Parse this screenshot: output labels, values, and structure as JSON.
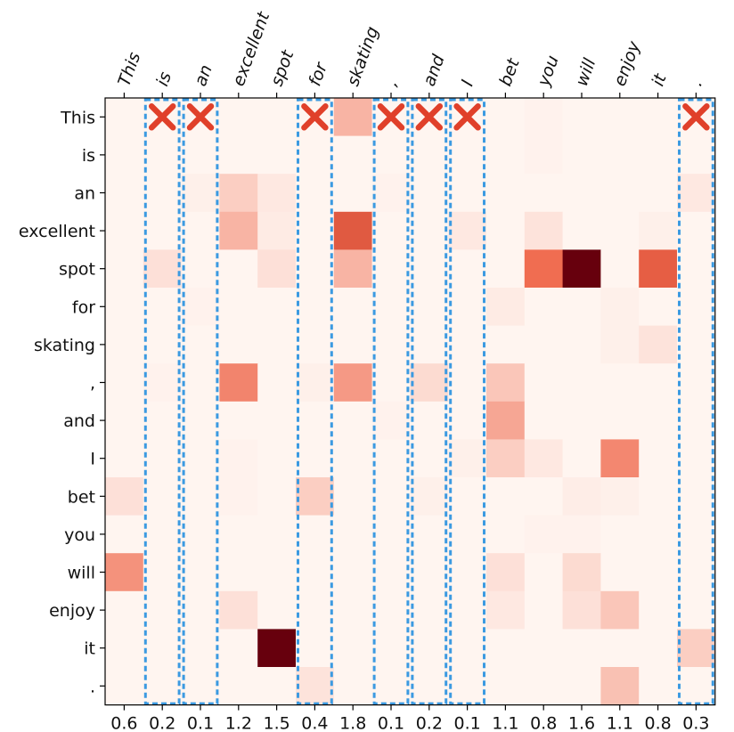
{
  "chart_data": {
    "type": "heatmap",
    "title": "",
    "xlabel": "",
    "ylabel": "",
    "x_tokens": [
      "This",
      "is",
      "an",
      "excellent",
      "spot",
      "for",
      "skating",
      ",",
      "and",
      "I",
      "bet",
      "you",
      "will",
      "enjoy",
      "it",
      "."
    ],
    "y_tokens": [
      "This",
      "is",
      "an",
      "excellent",
      "spot",
      "for",
      "skating",
      ",",
      "and",
      "I",
      "bet",
      "you",
      "will",
      "enjoy",
      "it",
      "."
    ],
    "column_scores": [
      "0.6",
      "0.2",
      "0.1",
      "1.2",
      "1.5",
      "0.4",
      "1.8",
      "0.1",
      "0.2",
      "0.1",
      "1.1",
      "0.8",
      "1.6",
      "1.1",
      "0.8",
      "0.3"
    ],
    "value_range": [
      0,
      1
    ],
    "colormap": "Reds",
    "colors": {
      "low": "#fff5f0",
      "mid": "#ef6548",
      "high": "#67000d",
      "highlight_box": "#3b9ae1",
      "cross_mark": "#e0402a"
    },
    "highlighted_columns": [
      1,
      2,
      5,
      7,
      8,
      9,
      15
    ],
    "crossed_cells": [
      [
        0,
        1
      ],
      [
        0,
        2
      ],
      [
        0,
        5
      ],
      [
        0,
        7
      ],
      [
        0,
        8
      ],
      [
        0,
        9
      ],
      [
        0,
        15
      ]
    ],
    "values": [
      [
        0.0,
        0.0,
        0.0,
        0.0,
        0.0,
        0.0,
        0.25,
        0.0,
        0.0,
        0.0,
        0.0,
        0.01,
        0.0,
        0.0,
        0.0,
        0.0
      ],
      [
        0.0,
        0.0,
        0.0,
        0.0,
        0.0,
        0.0,
        0.0,
        0.0,
        0.0,
        0.0,
        0.0,
        0.01,
        0.0,
        0.0,
        0.0,
        0.0
      ],
      [
        0.0,
        0.0,
        0.02,
        0.15,
        0.05,
        0.0,
        0.0,
        0.01,
        0.0,
        0.0,
        0.0,
        0.0,
        0.0,
        0.0,
        0.0,
        0.05
      ],
      [
        0.0,
        0.0,
        0.0,
        0.25,
        0.04,
        0.0,
        0.6,
        0.0,
        0.0,
        0.05,
        0.0,
        0.07,
        0.0,
        0.0,
        0.02,
        0.0
      ],
      [
        0.0,
        0.08,
        0.0,
        0.0,
        0.08,
        0.0,
        0.25,
        0.0,
        0.0,
        0.0,
        0.0,
        0.52,
        1.0,
        0.0,
        0.58,
        0.0
      ],
      [
        0.0,
        0.0,
        0.01,
        0.0,
        0.0,
        0.0,
        0.0,
        0.0,
        0.0,
        0.0,
        0.04,
        0.0,
        0.0,
        0.02,
        0.0,
        0.0
      ],
      [
        0.0,
        0.0,
        0.0,
        0.0,
        0.0,
        0.0,
        0.0,
        0.0,
        0.0,
        0.0,
        0.0,
        0.0,
        0.0,
        0.02,
        0.07,
        0.0
      ],
      [
        0.0,
        0.01,
        0.0,
        0.43,
        0.0,
        0.02,
        0.35,
        0.0,
        0.1,
        0.0,
        0.18,
        0.0,
        0.0,
        0.0,
        0.0,
        0.0
      ],
      [
        0.0,
        0.0,
        0.0,
        0.0,
        0.0,
        0.0,
        0.0,
        0.01,
        0.0,
        0.0,
        0.3,
        0.0,
        0.0,
        0.0,
        0.0,
        0.0
      ],
      [
        0.0,
        0.0,
        0.0,
        0.01,
        0.0,
        0.0,
        0.0,
        0.0,
        0.0,
        0.02,
        0.15,
        0.05,
        0.0,
        0.42,
        0.0,
        0.0
      ],
      [
        0.08,
        0.0,
        0.0,
        0.01,
        0.0,
        0.15,
        0.0,
        0.0,
        0.02,
        0.0,
        0.0,
        0.0,
        0.03,
        0.02,
        0.0,
        0.0
      ],
      [
        0.0,
        0.0,
        0.0,
        0.0,
        0.0,
        0.0,
        0.0,
        0.0,
        0.0,
        0.0,
        0.0,
        0.01,
        0.01,
        0.0,
        0.0,
        0.0
      ],
      [
        0.38,
        0.0,
        0.0,
        0.0,
        0.0,
        0.0,
        0.0,
        0.0,
        0.0,
        0.0,
        0.08,
        0.0,
        0.1,
        0.0,
        0.0,
        0.0
      ],
      [
        0.0,
        0.0,
        0.0,
        0.08,
        0.0,
        0.0,
        0.0,
        0.0,
        0.0,
        0.0,
        0.05,
        0.0,
        0.08,
        0.18,
        0.0,
        0.0
      ],
      [
        0.0,
        0.0,
        0.0,
        0.0,
        1.0,
        0.0,
        0.0,
        0.0,
        0.0,
        0.0,
        0.0,
        0.0,
        0.0,
        0.0,
        0.0,
        0.15
      ],
      [
        0.0,
        0.0,
        0.0,
        0.0,
        0.0,
        0.07,
        0.0,
        0.0,
        0.0,
        0.0,
        0.0,
        0.0,
        0.0,
        0.2,
        0.0,
        0.0
      ]
    ]
  }
}
